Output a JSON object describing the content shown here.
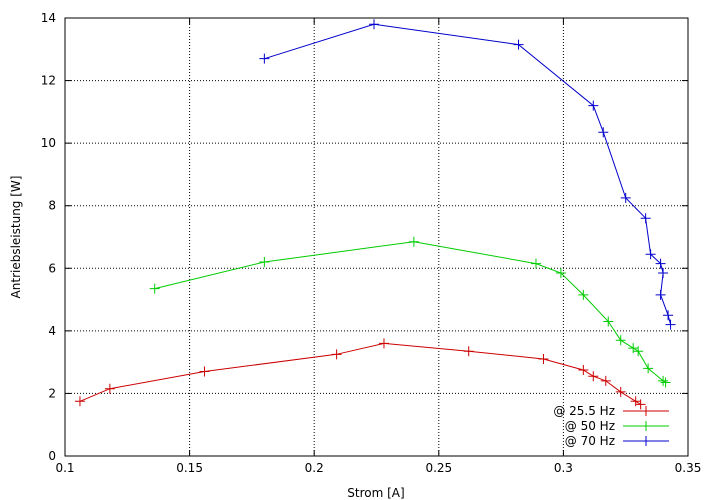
{
  "chart_data": {
    "type": "line",
    "title": "",
    "xlabel": "Strom [A]",
    "ylabel": "Antriebsleistung [W]",
    "xlim": [
      0.1,
      0.35
    ],
    "ylim": [
      0,
      14
    ],
    "grid": true,
    "legend_position": "bottom-right",
    "xticks": [
      "0.1",
      "0.15",
      "0.2",
      "0.25",
      "0.3",
      "0.35"
    ],
    "yticks": [
      "0",
      "2",
      "4",
      "6",
      "8",
      "10",
      "12",
      "14"
    ],
    "series": [
      {
        "name": "@ 25.5 Hz",
        "color": "#cc0000",
        "marker": "plus",
        "x": [
          0.106,
          0.118,
          0.156,
          0.209,
          0.228,
          0.262,
          0.292,
          0.308,
          0.312,
          0.317,
          0.323,
          0.329,
          0.331
        ],
        "y": [
          1.75,
          2.15,
          2.7,
          3.25,
          3.6,
          3.35,
          3.1,
          2.75,
          2.55,
          2.4,
          2.05,
          1.75,
          1.65
        ]
      },
      {
        "name": "@ 50 Hz",
        "color": "#00cc00",
        "marker": "plus",
        "x": [
          0.136,
          0.18,
          0.24,
          0.289,
          0.299,
          0.308,
          0.318,
          0.323,
          0.328,
          0.33,
          0.334,
          0.34,
          0.341
        ],
        "y": [
          5.35,
          6.2,
          6.85,
          6.15,
          5.85,
          5.15,
          4.3,
          3.7,
          3.45,
          3.35,
          2.8,
          2.4,
          2.35
        ]
      },
      {
        "name": "@ 70 Hz",
        "color": "#0000cc",
        "marker": "plus",
        "x": [
          0.18,
          0.224,
          0.282,
          0.312,
          0.316,
          0.325,
          0.333,
          0.335,
          0.339,
          0.34,
          0.339,
          0.342,
          0.343
        ],
        "y": [
          12.7,
          13.8,
          13.15,
          11.2,
          10.35,
          8.25,
          7.6,
          6.45,
          6.15,
          5.85,
          5.15,
          4.5,
          4.2
        ]
      }
    ]
  }
}
